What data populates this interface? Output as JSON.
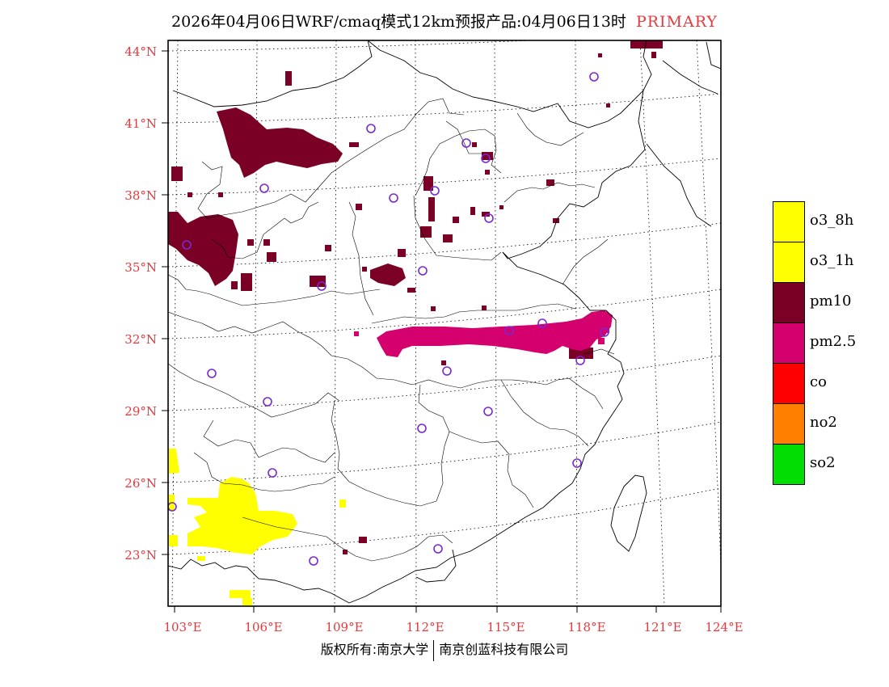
{
  "title": {
    "text": "2026年04月06日WRF/cmaq模式12km预报产品:04月06日13时",
    "mode": "PRIMARY"
  },
  "axes": {
    "lat_labels": [
      "44°N",
      "41°N",
      "38°N",
      "35°N",
      "32°N",
      "29°N",
      "26°N",
      "23°N"
    ],
    "lon_labels": [
      "103°E",
      "106°E",
      "109°E",
      "112°E",
      "115°E",
      "118°E",
      "121°E",
      "124°E"
    ]
  },
  "legend": [
    {
      "label": "o3_8h",
      "color": "#ffff00"
    },
    {
      "label": "o3_1h",
      "color": "#ffff00"
    },
    {
      "label": "pm10",
      "color": "#7a0026"
    },
    {
      "label": "pm2.5",
      "color": "#d4006e"
    },
    {
      "label": "co",
      "color": "#ff0000"
    },
    {
      "label": "no2",
      "color": "#ff8000"
    },
    {
      "label": "so2",
      "color": "#00dd00"
    }
  ],
  "footer": {
    "left": "版权所有:南京大学",
    "right": "南京创蓝科技有限公司"
  },
  "colors": {
    "pm10": "#7a0026",
    "pm25": "#d4006e",
    "o3": "#ffff00",
    "station": "#7a28d4",
    "tick": "#e8383d"
  }
}
